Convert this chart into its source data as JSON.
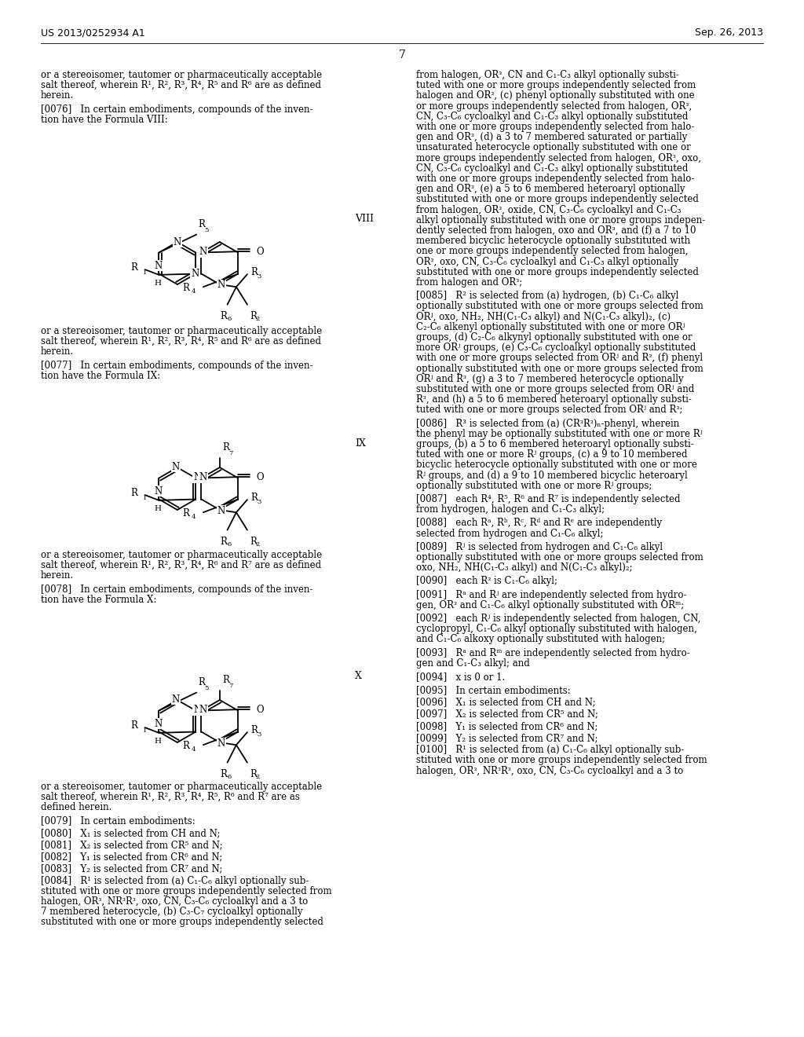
{
  "page_header_left": "US 2013/0252934 A1",
  "page_header_right": "Sep. 26, 2013",
  "page_number": "7",
  "bg_color": "#ffffff"
}
